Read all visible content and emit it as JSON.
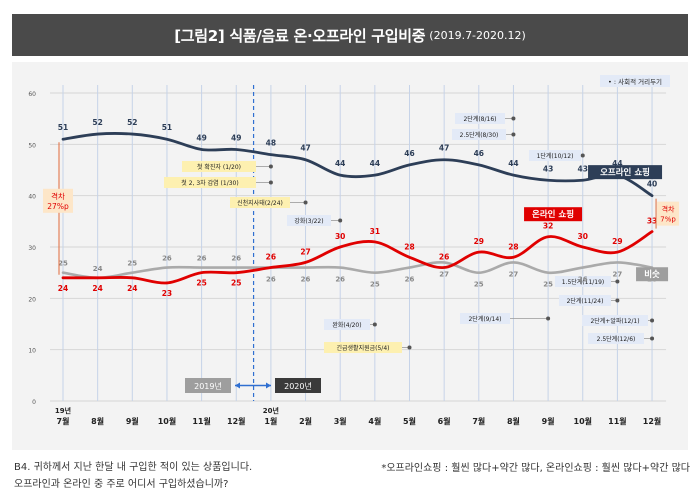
{
  "title": {
    "main": "[그림2] 식품/음료 온·오프라인 구입비중",
    "period": "(2019.7-2020.12)"
  },
  "legend_note": "• : 사회적 거리두기",
  "footer": {
    "question_line1": "B4. 귀하께서 지난 한달 내 구입한 적이 있는 상품입니다.",
    "question_line2": "오프라인과 온라인 중 주로 어디서 구입하셨습니까?",
    "note": "*오프라인쇼핑 : 훨씬 많다+약간 많다, 온라인쇼핑 : 훨씬 많다+약간 많다"
  },
  "chart_data": {
    "type": "line",
    "x": [
      "7월",
      "8월",
      "9월",
      "10월",
      "11월",
      "12월",
      "1월",
      "2월",
      "3월",
      "4월",
      "5월",
      "6월",
      "7월",
      "8월",
      "9월",
      "10월",
      "11월",
      "12월"
    ],
    "year_labels": [
      "19년",
      "20년"
    ],
    "ylim": [
      0,
      60
    ],
    "yticks": [
      0,
      10,
      20,
      30,
      40,
      50,
      60
    ],
    "grid": true,
    "series": [
      {
        "name": "오프라인 쇼핑",
        "color": "#2d3e57",
        "values": [
          51,
          52,
          52,
          51,
          49,
          49,
          48,
          47,
          44,
          44,
          46,
          47,
          46,
          44,
          43,
          43,
          44,
          40
        ]
      },
      {
        "name": "온라인 쇼핑",
        "color": "#e00000",
        "values": [
          24,
          24,
          24,
          23,
          25,
          25,
          26,
          27,
          30,
          31,
          28,
          26,
          29,
          28,
          32,
          30,
          29,
          33
        ]
      },
      {
        "name": "비슷",
        "color": "#aaaaaa",
        "values": [
          25,
          24,
          25,
          26,
          26,
          26,
          26,
          26,
          26,
          25,
          26,
          27,
          25,
          27,
          25,
          26,
          27,
          26
        ]
      }
    ],
    "period_buttons": [
      {
        "label": "2019년",
        "color": "#9e9e9e"
      },
      {
        "label": "2020년",
        "color": "#3a3a3a"
      }
    ],
    "gap_labels": [
      {
        "text": "격차\n27%p",
        "at": "7월"
      },
      {
        "text": "격차\n7%p",
        "at": "12월"
      }
    ],
    "annotations": [
      {
        "text": "첫 확진자 (1/20)",
        "style": "yellow",
        "line_value": 46
      },
      {
        "text": "첫 2, 3차 감염 (1/30)",
        "style": "yellow",
        "line_value": 42
      },
      {
        "text": "신천지사태(2/24)",
        "style": "yellow",
        "line_value": 38
      },
      {
        "text": "강화(3/22)",
        "style": "blue",
        "line_value": 35
      },
      {
        "text": "완화(4/20)",
        "style": "blue",
        "line_value": 15
      },
      {
        "text": "긴급생활지원금(5/4)",
        "style": "yellow",
        "line_value": 10.5
      },
      {
        "text": "2단계(8/16)",
        "style": "blue",
        "line_value": 55
      },
      {
        "text": "2.5단계(8/30)",
        "style": "blue",
        "line_value": 51.5
      },
      {
        "text": "1단계(10/12)",
        "style": "blue",
        "line_value": 47.5
      },
      {
        "text": "2단계(9/14)",
        "style": "blue",
        "line_value": 16.5
      },
      {
        "text": "1.5단계(11/19)",
        "style": "blue",
        "line_value": 23
      },
      {
        "text": "2단계(11/24)",
        "style": "blue",
        "line_value": 19.5
      },
      {
        "text": "2단계+알파(12/1)",
        "style": "blue",
        "line_value": 15.5
      },
      {
        "text": "2.5단계(12/6)",
        "style": "blue",
        "line_value": 12
      }
    ]
  }
}
